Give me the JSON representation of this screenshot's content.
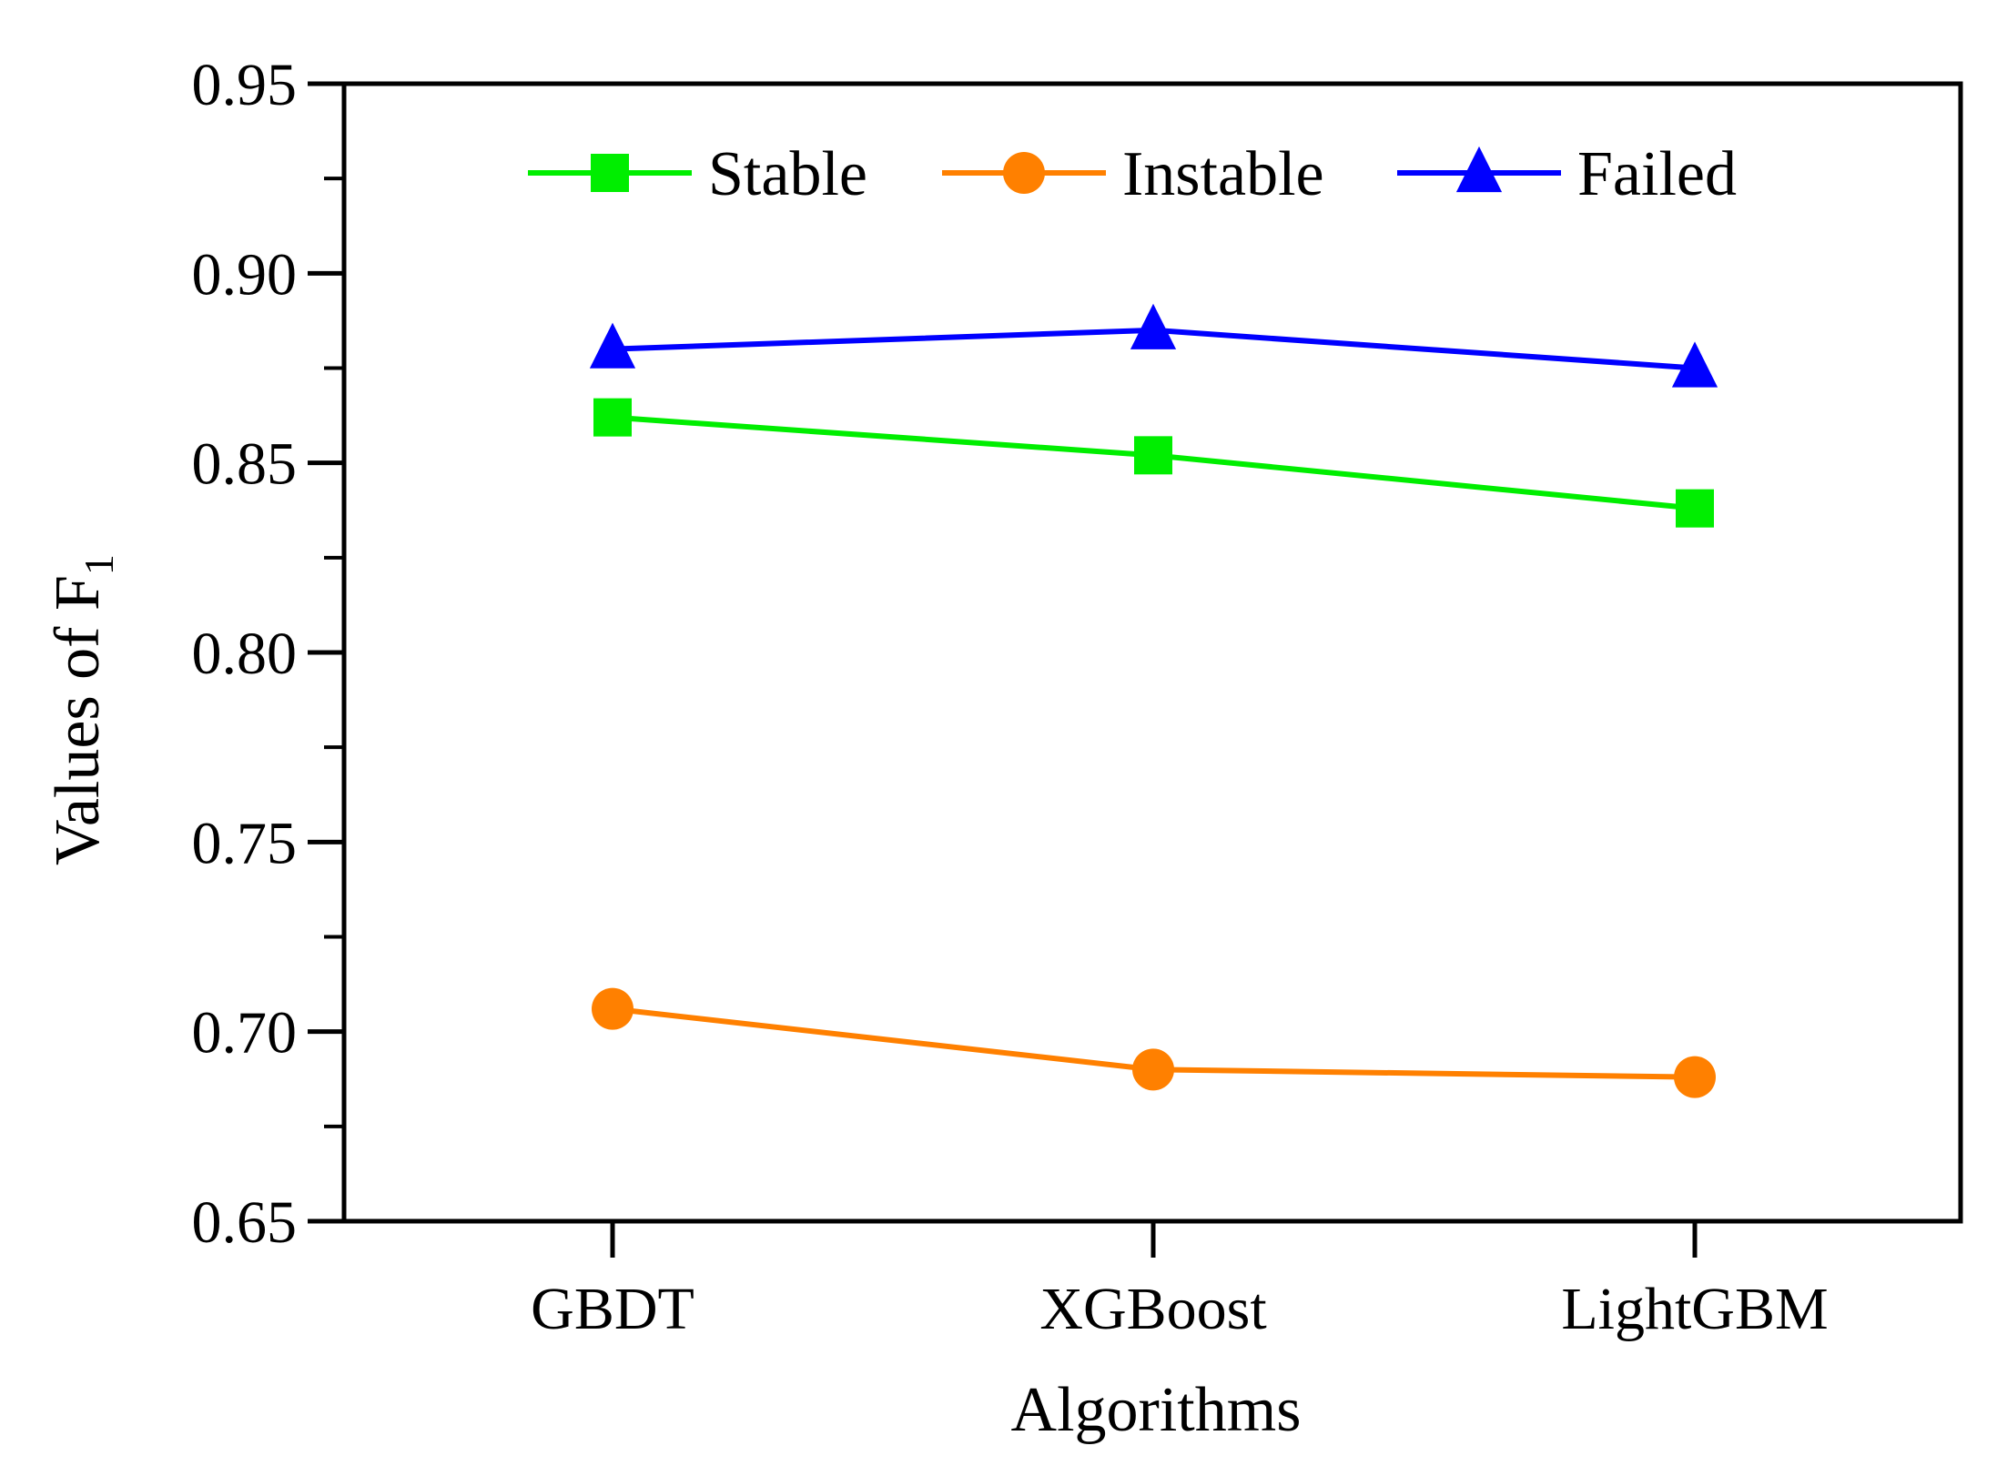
{
  "chart_data": {
    "type": "line",
    "title": "",
    "xlabel": "Algorithms",
    "ylabel": "Values of F",
    "ylabel_subscript": "1",
    "categories": [
      "GBDT",
      "XGBoost",
      "LightGBM"
    ],
    "ylim": [
      0.65,
      0.95
    ],
    "yticks": [
      "0.65",
      "0.70",
      "0.75",
      "0.80",
      "0.85",
      "0.90",
      "0.95"
    ],
    "grid": false,
    "legend_position": "top-center",
    "series": [
      {
        "name": "Stable",
        "values": [
          0.862,
          0.852,
          0.838
        ],
        "color": "#00ee00",
        "marker": "square"
      },
      {
        "name": "Instable",
        "values": [
          0.706,
          0.69,
          0.688
        ],
        "color": "#ff8000",
        "marker": "circle"
      },
      {
        "name": "Failed",
        "values": [
          0.88,
          0.885,
          0.875
        ],
        "color": "#0000ff",
        "marker": "triangle"
      }
    ]
  }
}
